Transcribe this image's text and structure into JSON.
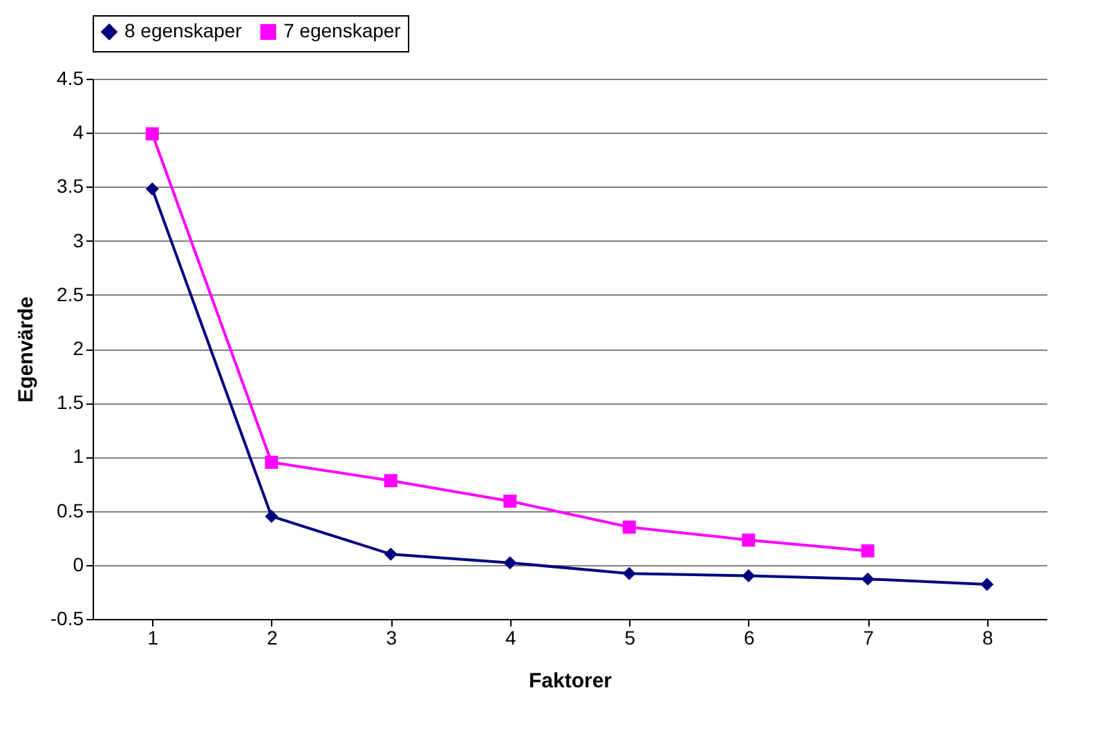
{
  "chart_data": {
    "type": "line",
    "xlabel": "Faktorer",
    "ylabel": "Egenvärde",
    "categories": [
      "1",
      "2",
      "3",
      "4",
      "5",
      "6",
      "7",
      "8"
    ],
    "series": [
      {
        "name": "8 egenskaper",
        "color": "#000080",
        "marker": "diamond",
        "values": [
          3.48,
          0.45,
          0.1,
          0.02,
          -0.08,
          -0.1,
          -0.13,
          -0.18
        ]
      },
      {
        "name": "7 egenskaper",
        "color": "#ff00ff",
        "marker": "square",
        "values": [
          3.99,
          0.95,
          0.78,
          0.59,
          0.35,
          0.23,
          0.13,
          null
        ]
      }
    ],
    "ylim": [
      -0.5,
      4.5
    ],
    "yticks": [
      -0.5,
      0,
      0.5,
      1,
      1.5,
      2,
      2.5,
      3,
      3.5,
      4,
      4.5
    ],
    "grid": "y",
    "legend": "top"
  }
}
